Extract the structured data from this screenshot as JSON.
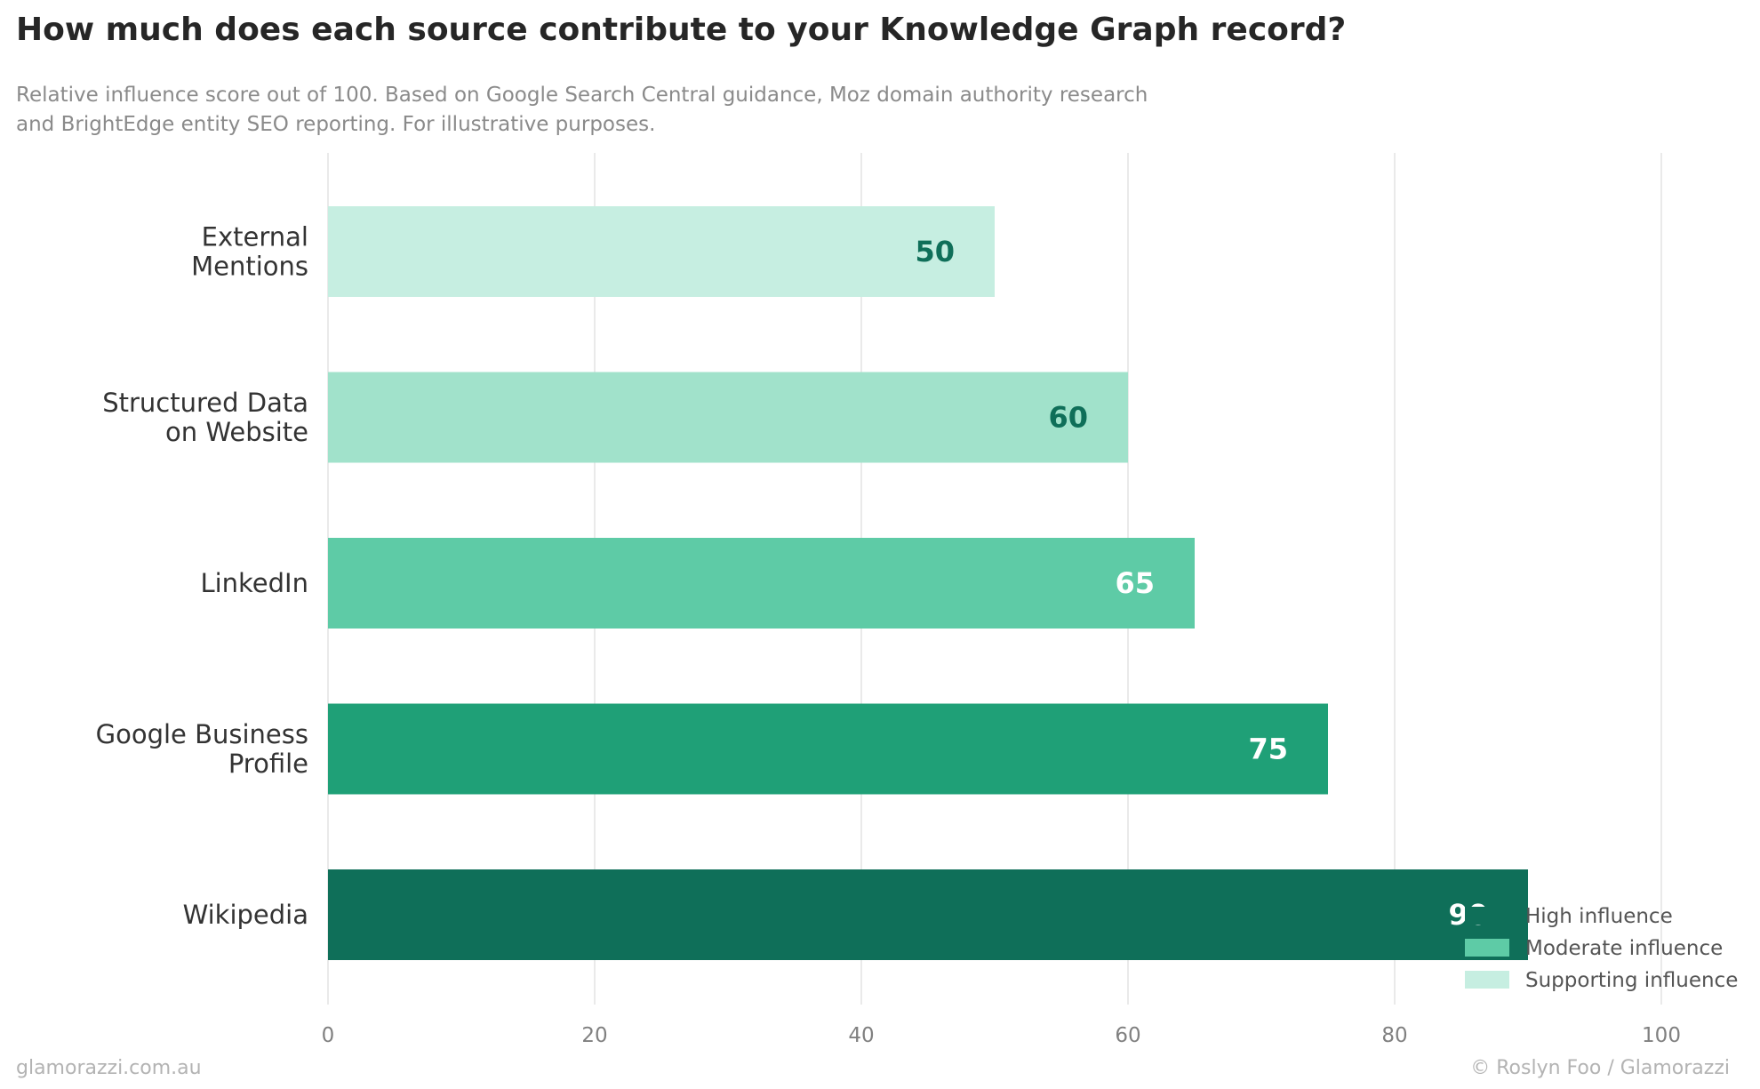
{
  "chart_data": {
    "type": "bar",
    "orientation": "horizontal",
    "title": "How much does each source contribute to your Knowledge Graph record?",
    "subtitle_lines": [
      "Relative influence score out of 100. Based on Google Search Central guidance, Moz domain authority research",
      "and BrightEdge entity SEO reporting. For illustrative purposes."
    ],
    "categories": [
      [
        "External",
        "Mentions"
      ],
      [
        "Structured Data",
        "on Website"
      ],
      [
        "LinkedIn"
      ],
      [
        "Google Business",
        "Profile"
      ],
      [
        "Wikipedia"
      ]
    ],
    "values": [
      50,
      60,
      65,
      75,
      90
    ],
    "bar_colors": [
      "#c6eee1",
      "#a1e2cb",
      "#5ecba6",
      "#1fa077",
      "#0f6f59"
    ],
    "label_colors": [
      "#0f6f59",
      "#0f6f59",
      "#ffffff",
      "#ffffff",
      "#ffffff"
    ],
    "xlim": [
      0,
      100
    ],
    "xticks": [
      0,
      20,
      40,
      60,
      80,
      100
    ],
    "xlabel": "",
    "ylabel": "",
    "grid": "vertical",
    "legend": {
      "placement": "bottom-right",
      "entries": [
        {
          "label": "High influence",
          "color": "#0f6f59"
        },
        {
          "label": "Moderate influence",
          "color": "#5ecba6"
        },
        {
          "label": "Supporting influence",
          "color": "#c6eee1"
        }
      ]
    }
  },
  "footer": {
    "left": "glamorazzi.com.au",
    "right": "© Roslyn Foo / Glamorazzi"
  }
}
